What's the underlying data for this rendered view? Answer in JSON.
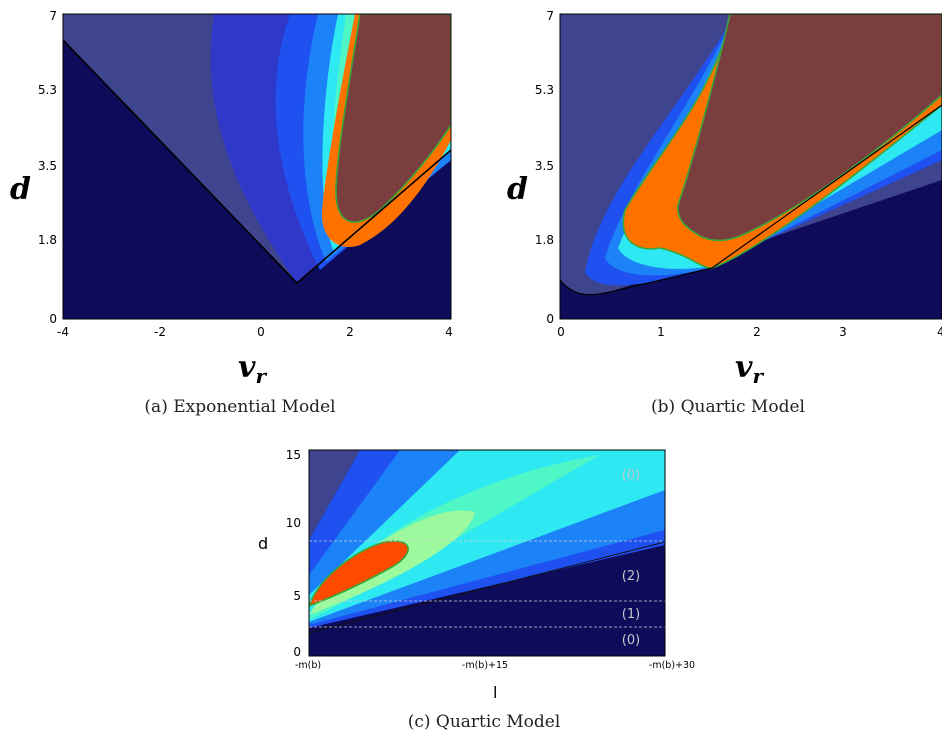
{
  "colors": {
    "background_dark": "#0e0c5a",
    "band_slate": "#3f448f",
    "band_blue": "#2f38c8",
    "band_mid": "#1f50f0",
    "band_light": "#1c82f7",
    "band_cyan": "#2fe9f2",
    "band_aqua": "#4ff7c6",
    "band_green": "#9cf99e",
    "peak_orange": "#ff7200",
    "peak_red": "#ff4a00",
    "core_brown": "#7b3e3e",
    "contour_green": "#3aa63a"
  },
  "chart_data": [
    {
      "type": "heatmap",
      "caption": "(a) Exponential Model",
      "xlabel": "v",
      "xlabel_sub": "r",
      "ylabel": "d",
      "xlim": [
        -4,
        4
      ],
      "ylim": [
        0,
        7
      ],
      "xticks": [
        "-4",
        "-2",
        "0",
        "2",
        "4"
      ],
      "yticks": [
        "0",
        "1.8",
        "3.5",
        "5.3",
        "7"
      ]
    },
    {
      "type": "heatmap",
      "caption": "(b) Quartic Model",
      "xlabel": "v",
      "xlabel_sub": "r",
      "ylabel": "d",
      "xlim": [
        0,
        4
      ],
      "ylim": [
        0,
        7
      ],
      "xticks": [
        "0",
        "1",
        "2",
        "3",
        "4"
      ],
      "yticks": [
        "0",
        "1.8",
        "3.5",
        "5.3",
        "7"
      ]
    },
    {
      "type": "heatmap",
      "caption": "(c) Quartic Model",
      "xlabel": "l",
      "ylabel": "d",
      "ylim": [
        0,
        15
      ],
      "xticks": [
        "-m(b)",
        "-m(b)+15",
        "-m(b)+30"
      ],
      "yticks": [
        "0",
        "5",
        "10",
        "15"
      ],
      "region_labels": [
        "(0)",
        "(2)",
        "(1)",
        "(0)"
      ]
    }
  ]
}
